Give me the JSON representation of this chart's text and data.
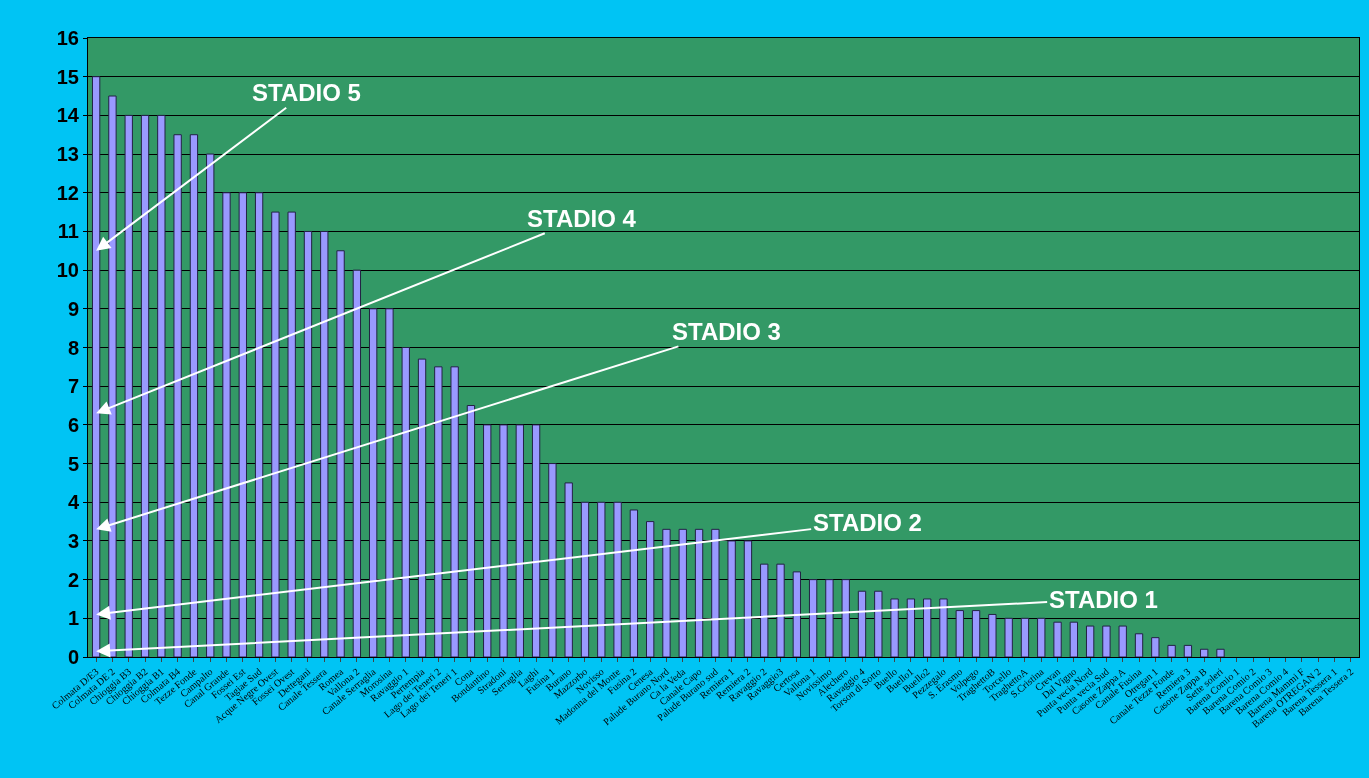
{
  "chart_data": {
    "type": "bar",
    "categories": [
      "Colmata D/E3",
      "Colmata DE 2",
      "Chioggia B3",
      "Chioggia B2",
      "Chioggia B1",
      "Colmata B4",
      "Tezze Fonde",
      "Campalto",
      "Canal Grande",
      "Fossei Est",
      "Tagiae Sud",
      "Acque Negre Ovest",
      "Fossei Ovest",
      "Dettegani",
      "Canale Tessera",
      "Romea",
      "Vallona 2",
      "Canale Serraglia",
      "Morosina",
      "Ravaggio 1",
      "Pertempia",
      "Lago dei Teneri 2",
      "Lago dei Teneri 1",
      "Cona",
      "Bondantino",
      "Stradoni",
      "Serraglia",
      "Laghi",
      "Fusina 1",
      "Burano",
      "Mazzorbo",
      "Novisso",
      "Madonna del Monte",
      "Fusina 2",
      "Cenesa",
      "Palude Burano Nord",
      "Ca la Veda",
      "Canale Capo",
      "Palude Burano sud",
      "Remiera 1",
      "Remiera 2",
      "Ravaggio 2",
      "Ravaggio3",
      "Certosa",
      "Vallona 1",
      "Novissimo",
      "Alechero",
      "Ravaggio 4",
      "Torson di Sotto",
      "Buello",
      "Buello1",
      "Buello2",
      "Pezzegalo",
      "S. Erasmo",
      "Volpego",
      "TraghettoB",
      "Torcello",
      "TraghettoA",
      "S.Cristina",
      "Crevan",
      "Dal Vigno",
      "Punta vecia Nord",
      "Punta vecia Sud",
      "Casone Zappa A",
      "Canale Fusina",
      "Otregan 1",
      "Canale Tezze Fonde",
      "Remiera 3",
      "Casone Zappa B",
      "Sette soleri",
      "Barena Comio 1",
      "Barena Comio 2",
      "Barena Comio 3",
      "Barena Comio 4",
      "Barena Mammi F",
      "Barena OTREGAN 2",
      "Barena Tessera 1",
      "Barena Tessera 2"
    ],
    "values": [
      15,
      14.5,
      14,
      14,
      14,
      13.5,
      13.5,
      13,
      12,
      12,
      12,
      11.5,
      11.5,
      11,
      11,
      10.5,
      10,
      9,
      9,
      8,
      7.7,
      7.5,
      7.5,
      6.5,
      6,
      6,
      6,
      6,
      5,
      4.5,
      4,
      4,
      4,
      3.8,
      3.5,
      3.3,
      3.3,
      3.3,
      3.3,
      3,
      3,
      2.4,
      2.4,
      2.2,
      2,
      2,
      2,
      1.7,
      1.7,
      1.5,
      1.5,
      1.5,
      1.5,
      1.2,
      1.2,
      1.1,
      1,
      1,
      1,
      0.9,
      0.9,
      0.8,
      0.8,
      0.8,
      0.6,
      0.5,
      0.3,
      0.3,
      0.2,
      0.2,
      0,
      0,
      0,
      0,
      0,
      0,
      0,
      0
    ],
    "color": "#9999ff",
    "ylim": [
      0,
      16
    ],
    "yticks": [
      0,
      1,
      2,
      3,
      4,
      5,
      6,
      7,
      8,
      9,
      10,
      11,
      12,
      13,
      14,
      15,
      16
    ],
    "grid": "y",
    "annotations": [
      {
        "text": "STADIO 5",
        "x": "Colmata D/E3",
        "y": 10.5
      },
      {
        "text": "STADIO 4",
        "x": "Colmata D/E3",
        "y": 6.3
      },
      {
        "text": "STADIO 3",
        "x": "Colmata D/E3",
        "y": 3.3
      },
      {
        "text": "STADIO 2",
        "x": "Colmata D/E3",
        "y": 1.1
      },
      {
        "text": "STADIO 1",
        "x": "Colmata D/E3",
        "y": 0.15
      }
    ]
  }
}
